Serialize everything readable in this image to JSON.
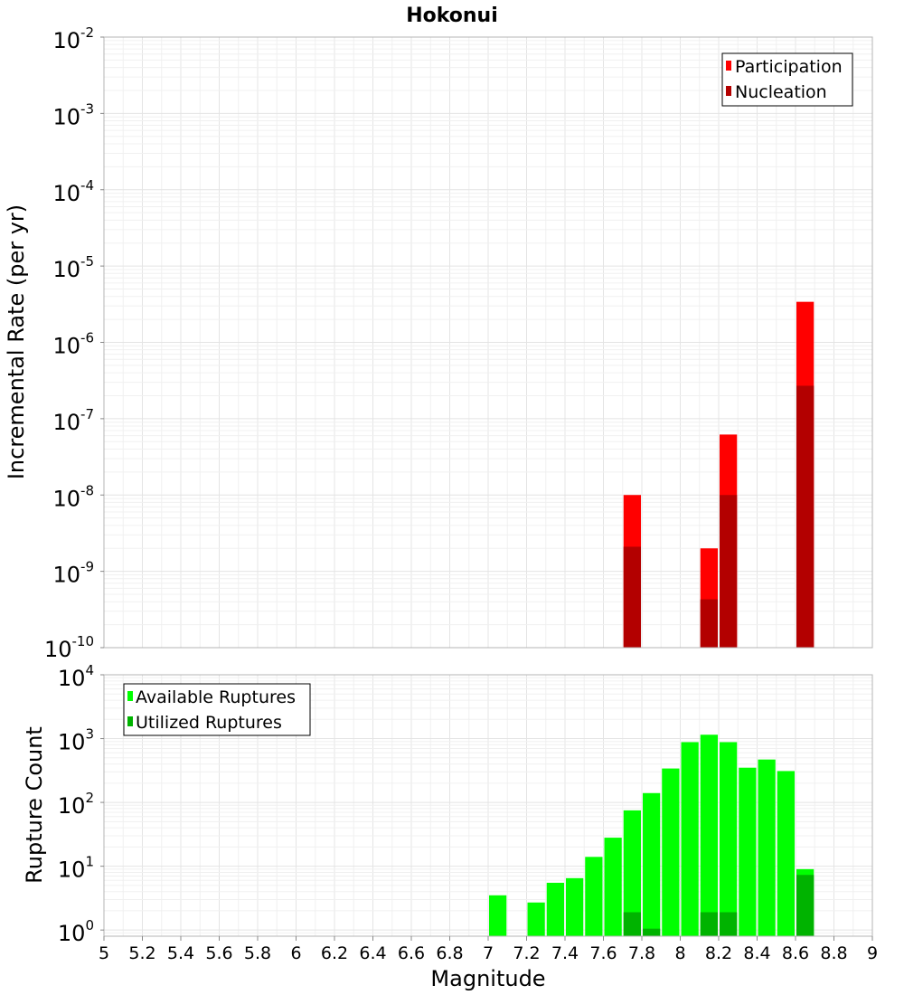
{
  "chart_data": [
    {
      "type": "bar",
      "title": "Hokonui",
      "xlabel": "",
      "ylabel": "Incremental Rate (per yr)",
      "xlim": [
        5,
        9
      ],
      "ylim": [
        1e-10,
        0.01
      ],
      "yscale": "log",
      "y_ticks": [
        {
          "base": "10",
          "exp": "-2"
        },
        {
          "base": "10",
          "exp": "-3"
        },
        {
          "base": "10",
          "exp": "-4"
        },
        {
          "base": "10",
          "exp": "-5"
        },
        {
          "base": "10",
          "exp": "-6"
        },
        {
          "base": "10",
          "exp": "-7"
        },
        {
          "base": "10",
          "exp": "-8"
        },
        {
          "base": "10",
          "exp": "-9"
        },
        {
          "base": "10",
          "exp": "-10"
        }
      ],
      "bar_width": 0.1,
      "grid": true,
      "legend_position": "top-right",
      "series": [
        {
          "name": "Participation",
          "color": "#ff0000",
          "points": [
            {
              "x": 7.75,
              "y": 1e-08
            },
            {
              "x": 8.15,
              "y": 2e-09
            },
            {
              "x": 8.25,
              "y": 6.2e-08
            },
            {
              "x": 8.65,
              "y": 3.4e-06
            }
          ]
        },
        {
          "name": "Nucleation",
          "color": "#b30000",
          "points": [
            {
              "x": 7.75,
              "y": 2.1e-09
            },
            {
              "x": 8.15,
              "y": 4.3e-10
            },
            {
              "x": 8.25,
              "y": 1e-08
            },
            {
              "x": 8.65,
              "y": 2.7e-07
            }
          ]
        }
      ]
    },
    {
      "type": "bar",
      "title": "",
      "xlabel": "Magnitude",
      "ylabel": "Rupture Count",
      "xlim": [
        5,
        9
      ],
      "ylim": [
        0.8,
        10000
      ],
      "yscale": "log",
      "y_ticks": [
        {
          "base": "10",
          "exp": "4"
        },
        {
          "base": "10",
          "exp": "3"
        },
        {
          "base": "10",
          "exp": "2"
        },
        {
          "base": "10",
          "exp": "1"
        },
        {
          "base": "10",
          "exp": "0"
        }
      ],
      "x_ticks": [
        "5",
        "5.2",
        "5.4",
        "5.6",
        "5.8",
        "6",
        "6.2",
        "6.4",
        "6.6",
        "6.8",
        "7",
        "7.2",
        "7.4",
        "7.6",
        "7.8",
        "8",
        "8.2",
        "8.4",
        "8.6",
        "8.8",
        "9"
      ],
      "bar_width": 0.1,
      "grid": true,
      "legend_position": "top-left",
      "series": [
        {
          "name": "Available Ruptures",
          "color": "#00ff00",
          "points": [
            {
              "x": 7.05,
              "y": 3.5
            },
            {
              "x": 7.25,
              "y": 2.7
            },
            {
              "x": 7.35,
              "y": 5.5
            },
            {
              "x": 7.45,
              "y": 6.5
            },
            {
              "x": 7.55,
              "y": 14
            },
            {
              "x": 7.65,
              "y": 28
            },
            {
              "x": 7.75,
              "y": 75
            },
            {
              "x": 7.85,
              "y": 140
            },
            {
              "x": 7.95,
              "y": 340
            },
            {
              "x": 8.05,
              "y": 880
            },
            {
              "x": 8.15,
              "y": 1150
            },
            {
              "x": 8.25,
              "y": 880
            },
            {
              "x": 8.35,
              "y": 350
            },
            {
              "x": 8.45,
              "y": 470
            },
            {
              "x": 8.55,
              "y": 310
            },
            {
              "x": 8.65,
              "y": 9
            }
          ]
        },
        {
          "name": "Utilized Ruptures",
          "color": "#00b300",
          "points": [
            {
              "x": 7.75,
              "y": 1.9
            },
            {
              "x": 7.85,
              "y": 1.05
            },
            {
              "x": 8.15,
              "y": 1.9
            },
            {
              "x": 8.25,
              "y": 1.9
            },
            {
              "x": 8.65,
              "y": 7.3
            }
          ]
        }
      ]
    }
  ]
}
